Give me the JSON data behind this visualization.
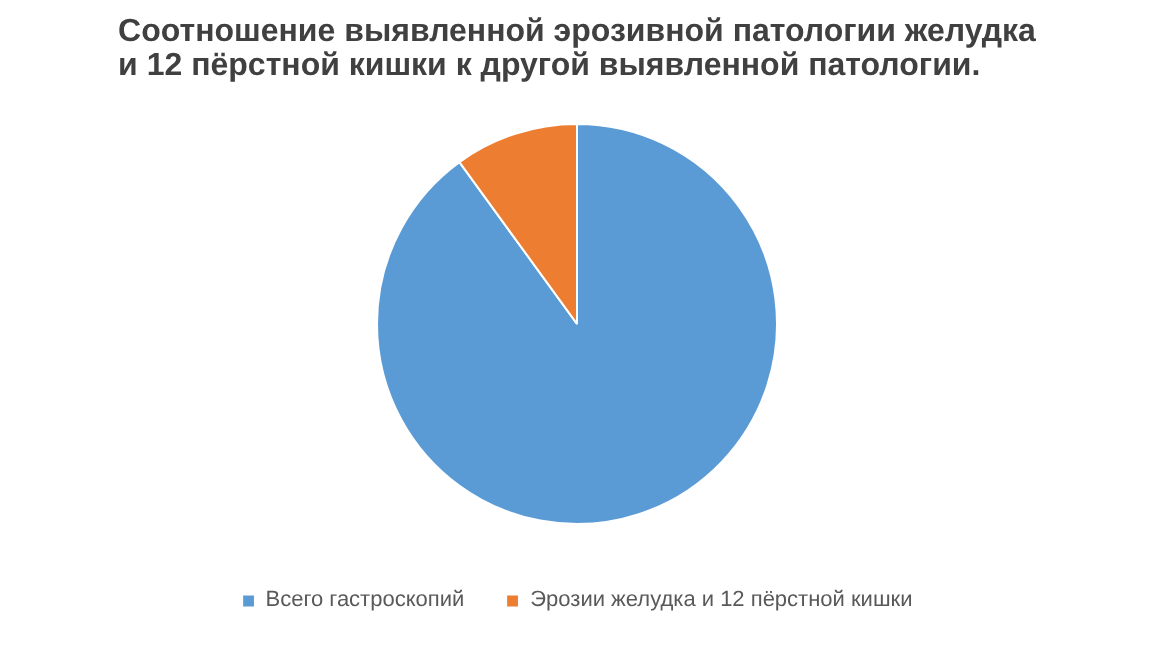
{
  "chart_data": {
    "type": "pie",
    "title": "Соотношение выявленной эрозивной патологии желудка\nи 12 пёрстной кишки к другой выявленной патологии.",
    "categories": [
      "Всего гастроскопий",
      "Эрозии желудка и 12 пёрстной кишки"
    ],
    "values": [
      90,
      10
    ],
    "colors": [
      "#5b9bd5",
      "#ed7d31"
    ],
    "legend": "bottom"
  }
}
